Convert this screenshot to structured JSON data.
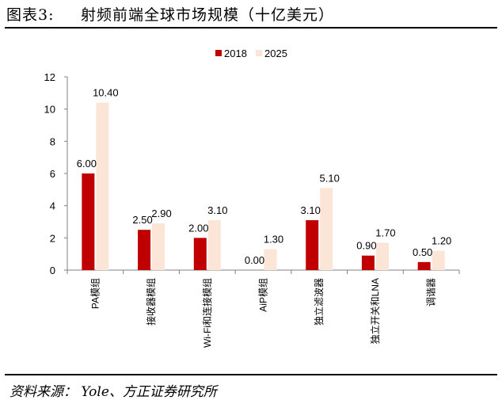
{
  "header": {
    "figure_label": "图表3:",
    "title": "射频前端全球市场规模（十亿美元）"
  },
  "footer": {
    "source": "资料来源：  Yole、方正证券研究所"
  },
  "colors": {
    "series_2018": "#c00000",
    "series_2025": "#fbe5d6"
  },
  "chart_data": {
    "type": "bar",
    "title": "",
    "categories": [
      "PA模组",
      "接收器模组",
      "Wi-Fi和连接模组",
      "AiP模组",
      "独立滤波器",
      "独立开关和LNA",
      "调谐器"
    ],
    "series": [
      {
        "name": "2018",
        "values": [
          6.0,
          2.5,
          2.0,
          0.0,
          3.1,
          0.9,
          0.5
        ],
        "labels": [
          "6.00",
          "2.50",
          "2.00",
          "0.00",
          "3.10",
          "0.90",
          "0.50"
        ]
      },
      {
        "name": "2025",
        "values": [
          10.4,
          2.9,
          3.1,
          1.3,
          5.1,
          1.7,
          1.2
        ],
        "labels": [
          "10.40",
          "2.90",
          "3.10",
          "1.30",
          "5.10",
          "1.70",
          "1.20"
        ]
      }
    ],
    "ylim": [
      0,
      12
    ],
    "yticks": [
      "0",
      "2",
      "4",
      "6",
      "8",
      "10",
      "12"
    ],
    "xlabel": "",
    "ylabel": "",
    "grid": false,
    "legend_position": "top-center"
  }
}
